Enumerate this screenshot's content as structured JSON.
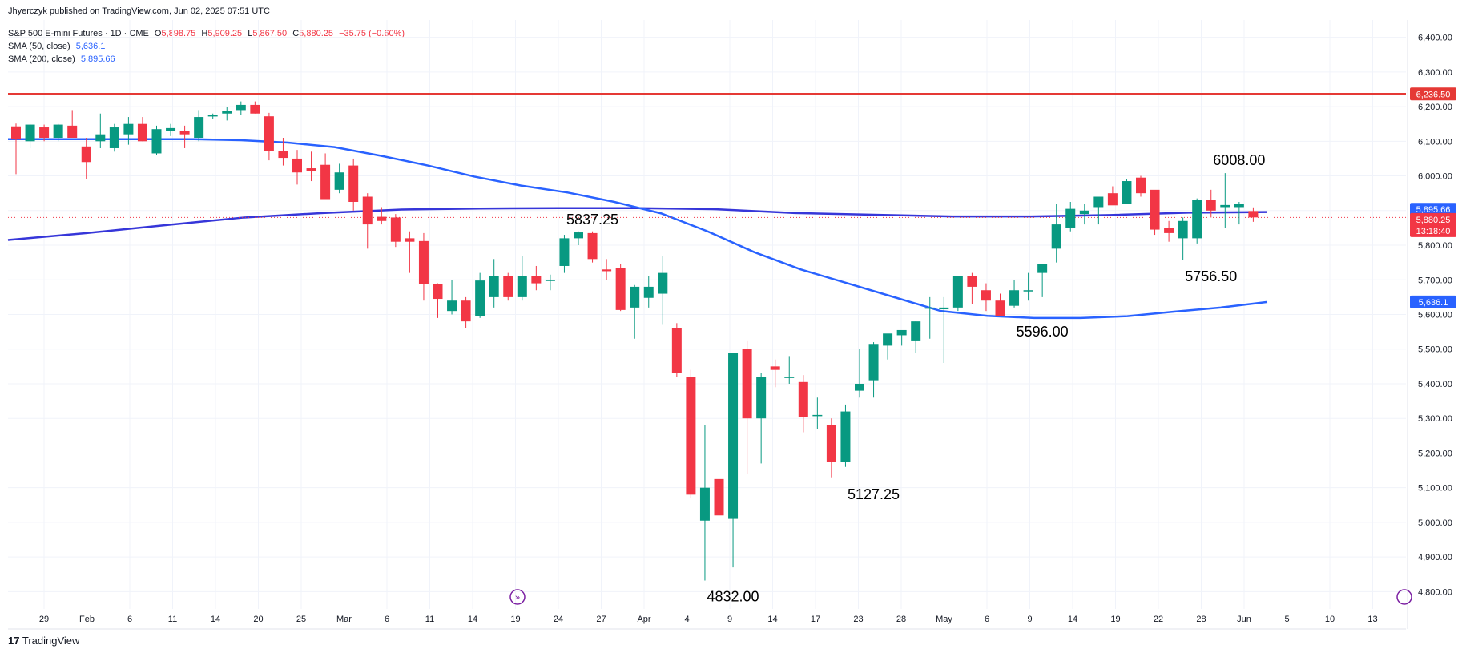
{
  "publisher": "Jhyerczyk published on TradingView.com, Jun 02, 2025 07:51 UTC",
  "legend": {
    "symbol": "S&P 500 E-mini Futures · 1D · CME",
    "open_label": "O",
    "open": "5,898.75",
    "high_label": "H",
    "high": "5,909.25",
    "low_label": "L",
    "low": "5,867.50",
    "close_label": "C",
    "close": "5,880.25",
    "change": "−35.75 (−0.60%)",
    "sma50_name": "SMA (50, close)",
    "sma50_value": "5,636.1",
    "sma200_name": "SMA (200, close)",
    "sma200_value": "5,895.66"
  },
  "brand": "TradingView",
  "colors": {
    "up": "#089981",
    "down": "#f23645",
    "sma": "#2962ff",
    "sma200": "#3636d9",
    "resistance": "#e53935"
  },
  "chart_data": {
    "type": "candlestick",
    "ylim": [
      4750,
      6450
    ],
    "y_ticks": [
      "6,400.00",
      "6,300.00",
      "6,200.00",
      "6,100.00",
      "6,000.00",
      "5,900.00",
      "5,800.00",
      "5,700.00",
      "5,600.00",
      "5,500.00",
      "5,400.00",
      "5,300.00",
      "5,200.00",
      "5,100.00",
      "5,000.00",
      "4,900.00",
      "4,800.00"
    ],
    "x_ticks": [
      "29",
      "Feb",
      "6",
      "11",
      "14",
      "20",
      "25",
      "Mar",
      "6",
      "11",
      "14",
      "19",
      "24",
      "27",
      "Apr",
      "4",
      "9",
      "14",
      "17",
      "23",
      "28",
      "May",
      "6",
      "9",
      "14",
      "19",
      "22",
      "28",
      "Jun",
      "5",
      "10",
      "13"
    ],
    "resistance": {
      "value": 6236.5,
      "label": "6,236.50"
    },
    "price_labels": [
      {
        "text": "5,895.66",
        "value": 5895.66,
        "color": "#2962ff"
      },
      {
        "text": "5,880.25",
        "value": 5880.25,
        "color": "#f23645",
        "sub": "13:18:40"
      },
      {
        "text": "5,636.1",
        "value": 5636.1,
        "color": "#2962ff"
      }
    ],
    "annotations": [
      {
        "text": "5837.25",
        "index": 41,
        "value": 5837.25,
        "pos": "above"
      },
      {
        "text": "4832.00",
        "index": 51,
        "value": 4832,
        "pos": "below"
      },
      {
        "text": "5127.25",
        "index": 61,
        "value": 5127.25,
        "pos": "below"
      },
      {
        "text": "5596.00",
        "index": 73,
        "value": 5596,
        "pos": "below"
      },
      {
        "text": "5756.50",
        "index": 85,
        "value": 5756.5,
        "pos": "below"
      },
      {
        "text": "6008.00",
        "index": 87,
        "value": 6008,
        "pos": "above"
      }
    ],
    "candles": [
      [
        6143,
        6151,
        6005,
        6105
      ],
      [
        6100,
        6150,
        6080,
        6148
      ],
      [
        6140,
        6148,
        6100,
        6110
      ],
      [
        6110,
        6150,
        6100,
        6148
      ],
      [
        6145,
        6190,
        6110,
        6110
      ],
      [
        6085,
        6110,
        5990,
        6040
      ],
      [
        6100,
        6180,
        6080,
        6120
      ],
      [
        6080,
        6150,
        6070,
        6140
      ],
      [
        6120,
        6170,
        6090,
        6150
      ],
      [
        6150,
        6170,
        6100,
        6100
      ],
      [
        6065,
        6145,
        6060,
        6135
      ],
      [
        6130,
        6150,
        6115,
        6138
      ],
      [
        6130,
        6145,
        6080,
        6120
      ],
      [
        6110,
        6190,
        6100,
        6170
      ],
      [
        6174,
        6180,
        6165,
        6175
      ],
      [
        6180,
        6200,
        6160,
        6187
      ],
      [
        6190,
        6215,
        6175,
        6205
      ],
      [
        6205,
        6215,
        6180,
        6180
      ],
      [
        6172,
        6182,
        6045,
        6073
      ],
      [
        6073,
        6110,
        6030,
        6052
      ],
      [
        6050,
        6075,
        5975,
        6010
      ],
      [
        6022,
        6070,
        5985,
        6015
      ],
      [
        6032,
        6065,
        5935,
        5933
      ],
      [
        5960,
        6035,
        5950,
        6010
      ],
      [
        6030,
        6050,
        5900,
        5925
      ],
      [
        5940,
        5950,
        5790,
        5860
      ],
      [
        5882,
        5910,
        5860,
        5870
      ],
      [
        5880,
        5890,
        5795,
        5810
      ],
      [
        5820,
        5840,
        5720,
        5810
      ],
      [
        5812,
        5835,
        5640,
        5688
      ],
      [
        5688,
        5690,
        5590,
        5645
      ],
      [
        5610,
        5700,
        5600,
        5640
      ],
      [
        5640,
        5650,
        5560,
        5580
      ],
      [
        5595,
        5720,
        5590,
        5698
      ],
      [
        5650,
        5760,
        5620,
        5710
      ],
      [
        5710,
        5720,
        5640,
        5650
      ],
      [
        5650,
        5770,
        5640,
        5710
      ],
      [
        5710,
        5740,
        5670,
        5690
      ],
      [
        5700,
        5715,
        5670,
        5700
      ],
      [
        5740,
        5830,
        5720,
        5820
      ],
      [
        5820,
        5840,
        5800,
        5837
      ],
      [
        5835,
        5840,
        5750,
        5760
      ],
      [
        5730,
        5760,
        5700,
        5725
      ],
      [
        5735,
        5745,
        5610,
        5613
      ],
      [
        5620,
        5685,
        5530,
        5680
      ],
      [
        5648,
        5710,
        5620,
        5680
      ],
      [
        5660,
        5770,
        5570,
        5720
      ],
      [
        5560,
        5575,
        5420,
        5430
      ],
      [
        5420,
        5440,
        5070,
        5080
      ],
      [
        5005,
        5280,
        4832,
        5100
      ],
      [
        5125,
        5310,
        4930,
        5020
      ],
      [
        5010,
        5490,
        4870,
        5490
      ],
      [
        5500,
        5525,
        5140,
        5300
      ],
      [
        5300,
        5430,
        5170,
        5420
      ],
      [
        5450,
        5470,
        5390,
        5440
      ],
      [
        5420,
        5480,
        5400,
        5420
      ],
      [
        5405,
        5425,
        5260,
        5305
      ],
      [
        5310,
        5360,
        5270,
        5310
      ],
      [
        5280,
        5300,
        5130,
        5175
      ],
      [
        5175,
        5340,
        5160,
        5320
      ],
      [
        5380,
        5500,
        5360,
        5400
      ],
      [
        5410,
        5520,
        5360,
        5515
      ],
      [
        5510,
        5540,
        5470,
        5545
      ],
      [
        5540,
        5550,
        5510,
        5555
      ],
      [
        5525,
        5580,
        5490,
        5580
      ],
      [
        5620,
        5650,
        5530,
        5620
      ],
      [
        5615,
        5650,
        5460,
        5620
      ],
      [
        5620,
        5700,
        5610,
        5712
      ],
      [
        5710,
        5720,
        5630,
        5680
      ],
      [
        5670,
        5690,
        5610,
        5640
      ],
      [
        5640,
        5660,
        5596,
        5595
      ],
      [
        5625,
        5700,
        5620,
        5670
      ],
      [
        5670,
        5720,
        5640,
        5670
      ],
      [
        5720,
        5740,
        5650,
        5745
      ],
      [
        5790,
        5920,
        5750,
        5860
      ],
      [
        5850,
        5925,
        5840,
        5905
      ],
      [
        5890,
        5920,
        5860,
        5900
      ],
      [
        5910,
        5930,
        5860,
        5940
      ],
      [
        5950,
        5970,
        5920,
        5915
      ],
      [
        5920,
        5990,
        5920,
        5985
      ],
      [
        5995,
        6000,
        5940,
        5950
      ],
      [
        5960,
        5955,
        5830,
        5845
      ],
      [
        5850,
        5870,
        5810,
        5835
      ],
      [
        5820,
        5880,
        5757,
        5870
      ],
      [
        5820,
        5935,
        5805,
        5930
      ],
      [
        5930,
        5960,
        5880,
        5900
      ],
      [
        5910,
        6008,
        5850,
        5916
      ],
      [
        5910,
        5925,
        5860,
        5920
      ],
      [
        5898.75,
        5909.25,
        5867.5,
        5880.25
      ]
    ],
    "sma50": [
      6106,
      6106,
      6106,
      6106,
      6106,
      6103,
      6096,
      6083,
      6058,
      6030,
      5998,
      5972,
      5952,
      5925,
      5892,
      5840,
      5780,
      5730,
      5690,
      5650,
      5610,
      5596,
      5590,
      5590,
      5595,
      5608,
      5620,
      5636.1
    ],
    "sma200": [
      5815,
      5835,
      5858,
      5880,
      5893,
      5903,
      5906,
      5907,
      5907,
      5904,
      5893,
      5888,
      5883,
      5883,
      5887,
      5894,
      5895.66
    ]
  }
}
